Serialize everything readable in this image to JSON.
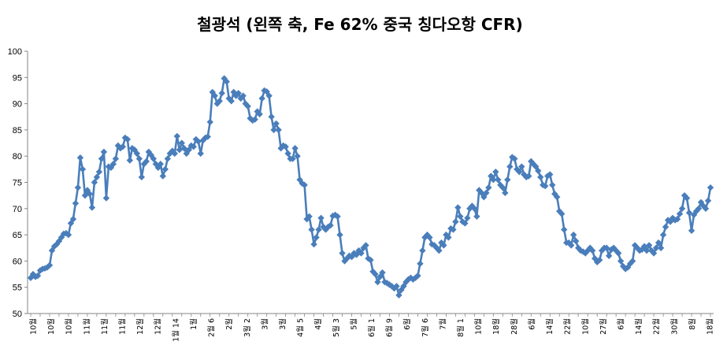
{
  "chart_data": {
    "type": "line",
    "title": "철광석 (왼쪽 축, Fe 62% 중국 칭다오항 CFR)",
    "xlabel": "",
    "ylabel": "",
    "ylim": [
      50,
      100
    ],
    "yticks": [
      50,
      55,
      60,
      65,
      70,
      75,
      80,
      85,
      90,
      95,
      100
    ],
    "grid": false,
    "legend": "none",
    "colors": {
      "line": "#4a7ebb",
      "marker": "#4a7ebb"
    },
    "x_tick_labels": [
      "10월",
      "10월",
      "10월",
      "11월",
      "11월",
      "11월",
      "12월",
      "12월",
      "1월 14",
      "1월",
      "2월 6",
      "2월",
      "3월 2",
      "3월",
      "3월",
      "4월 5",
      "4월",
      "5월 3",
      "5월",
      "6월 1",
      "6월 9",
      "6월",
      "7월 6",
      "7월",
      "8월 1",
      "10월",
      "18월",
      "28월",
      "6월",
      "14월",
      "22월",
      "10월",
      "27월",
      "6월",
      "14월",
      "22월",
      "30월",
      "8월",
      "18월"
    ],
    "values": [
      56.8,
      57.5,
      57.0,
      57.2,
      58.2,
      58.5,
      58.6,
      58.8,
      59.2,
      62.0,
      62.8,
      63.2,
      63.8,
      64.5,
      65.2,
      65.3,
      65.0,
      67.2,
      68.0,
      71.0,
      74.0,
      79.7,
      77.5,
      72.5,
      73.5,
      72.8,
      70.2,
      75.0,
      76.0,
      77.0,
      79.5,
      80.8,
      72.0,
      78.0,
      77.8,
      78.5,
      79.5,
      82.0,
      81.5,
      81.8,
      83.5,
      83.2,
      79.2,
      81.5,
      81.2,
      80.5,
      79.5,
      76.0,
      78.5,
      79.0,
      80.8,
      80.2,
      79.5,
      78.5,
      77.8,
      78.5,
      76.2,
      77.5,
      79.5,
      80.5,
      81.0,
      80.5,
      83.8,
      81.2,
      82.5,
      81.5,
      80.5,
      81.2,
      82.0,
      81.8,
      83.2,
      82.8,
      80.5,
      83.0,
      83.5,
      83.7,
      86.5,
      92.2,
      91.5,
      90.0,
      90.5,
      92.0,
      94.8,
      94.2,
      91.0,
      90.5,
      92.2,
      91.5,
      92.0,
      91.0,
      91.5,
      90.0,
      89.5,
      87.2,
      86.8,
      87.0,
      88.5,
      88.0,
      91.0,
      92.5,
      92.3,
      91.5,
      87.5,
      85.0,
      86.2,
      85.0,
      81.5,
      82.0,
      81.8,
      80.5,
      79.5,
      79.5,
      81.5,
      80.0,
      75.5,
      74.8,
      74.5,
      68.0,
      68.5,
      66.0,
      63.2,
      64.5,
      66.0,
      68.2,
      66.5,
      66.0,
      66.5,
      66.8,
      68.6,
      68.8,
      68.5,
      65.0,
      61.5,
      60.0,
      60.5,
      61.0,
      60.8,
      61.5,
      61.2,
      62.0,
      61.5,
      62.5,
      63.0,
      60.5,
      60.2,
      58.0,
      57.5,
      56.0,
      57.0,
      57.8,
      56.0,
      55.8,
      55.5,
      55.2,
      54.8,
      55.2,
      53.5,
      54.5,
      55.2,
      56.0,
      56.5,
      56.8,
      56.5,
      56.8,
      57.2,
      59.5,
      62.0,
      64.5,
      65.0,
      64.5,
      63.2,
      63.0,
      62.5,
      62.0,
      63.5,
      63.0,
      65.0,
      64.5,
      66.2,
      66.0,
      67.5,
      70.2,
      68.5,
      67.5,
      67.2,
      68.2,
      70.0,
      70.5,
      70.0,
      68.5,
      73.5,
      73.0,
      72.2,
      73.0,
      74.0,
      76.2,
      75.5,
      77.0,
      75.5,
      74.5,
      74.0,
      73.0,
      75.5,
      78.0,
      79.8,
      79.5,
      77.5,
      77.0,
      78.0,
      76.5,
      76.0,
      76.2,
      79.0,
      78.5,
      78.0,
      77.2,
      76.0,
      74.5,
      74.3,
      76.2,
      76.5,
      74.5,
      72.8,
      72.2,
      69.5,
      69.0,
      66.0,
      63.5,
      63.5,
      63.0,
      65.0,
      63.8,
      62.5,
      62.0,
      61.8,
      61.5,
      62.0,
      62.5,
      62.0,
      60.5,
      59.8,
      60.2,
      62.0,
      62.5,
      62.5,
      61.0,
      62.2,
      62.5,
      62.0,
      61.5,
      60.0,
      59.0,
      58.5,
      58.8,
      59.5,
      60.0,
      63.0,
      62.5,
      62.0,
      62.2,
      62.8,
      62.0,
      63.0,
      62.0,
      61.5,
      62.5,
      63.5,
      62.5,
      65.0,
      66.5,
      67.8,
      67.5,
      68.2,
      67.8,
      68.0,
      69.0,
      70.0,
      72.5,
      72.0,
      69.2,
      65.8,
      68.8,
      69.5,
      70.0,
      71.2,
      70.5,
      70.0,
      71.5,
      74.0
    ]
  }
}
